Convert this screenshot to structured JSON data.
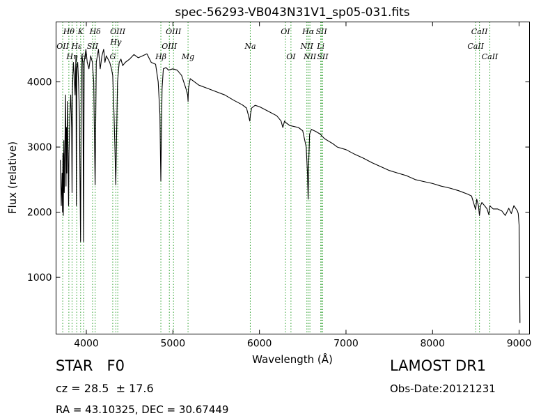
{
  "chart_data": {
    "type": "line",
    "title": "spec-56293-VB043N31V1_sp05-031.fits",
    "xlabel": "Wavelength (Å)",
    "ylabel": "Flux (relative)",
    "xlim": [
      3650,
      9120
    ],
    "ylim": [
      130,
      4920
    ],
    "xticks": [
      4000,
      5000,
      6000,
      7000,
      8000,
      9000
    ],
    "yticks": [
      1000,
      2000,
      3000,
      4000
    ],
    "grid": false,
    "legend": "none",
    "line_color": "#000000",
    "marker_color": "#2ca02c",
    "series": [
      {
        "x": [
          3700,
          3710,
          3720,
          3725,
          3730,
          3734,
          3740,
          3745,
          3750,
          3760,
          3765,
          3770,
          3775,
          3780,
          3790,
          3795,
          3800,
          3810,
          3820,
          3830,
          3835,
          3840,
          3850,
          3860,
          3870,
          3880,
          3885,
          3890,
          3900,
          3910,
          3920,
          3933,
          3940,
          3950,
          3960,
          3968,
          3975,
          3985,
          3995,
          4010,
          4030,
          4050,
          4070,
          4085,
          4101,
          4115,
          4140,
          4160,
          4180,
          4200,
          4215,
          4230,
          4250,
          4270,
          4290,
          4305,
          4320,
          4330,
          4340,
          4350,
          4360,
          4380,
          4400,
          4420,
          4450,
          4500,
          4550,
          4600,
          4650,
          4700,
          4750,
          4800,
          4830,
          4850,
          4855,
          4861,
          4867,
          4875,
          4890,
          4920,
          4950,
          5000,
          5050,
          5100,
          5150,
          5170,
          5175,
          5180,
          5200,
          5300,
          5400,
          5500,
          5600,
          5700,
          5800,
          5850,
          5870,
          5889,
          5896,
          5910,
          5950,
          6000,
          6100,
          6200,
          6250,
          6270,
          6290,
          6300,
          6350,
          6450,
          6500,
          6540,
          6555,
          6563,
          6570,
          6580,
          6600,
          6650,
          6700,
          6750,
          6800,
          6850,
          6900,
          7000,
          7100,
          7200,
          7300,
          7400,
          7500,
          7600,
          7700,
          7800,
          7900,
          8000,
          8100,
          8200,
          8300,
          8400,
          8450,
          8480,
          8490,
          8498,
          8510,
          8530,
          8542,
          8555,
          8570,
          8600,
          8630,
          8650,
          8662,
          8675,
          8700,
          8750,
          8800,
          8840,
          8880,
          8910,
          8940,
          8960,
          8980,
          8990,
          9000,
          9005,
          9010
        ],
        "y": [
          2800,
          2100,
          2600,
          2000,
          2900,
          1950,
          3100,
          2300,
          2700,
          3800,
          2400,
          3300,
          2600,
          3700,
          2700,
          2100,
          2900,
          3500,
          3800,
          3300,
          2300,
          3900,
          4300,
          4100,
          3800,
          4400,
          2100,
          4200,
          4300,
          4000,
          3500,
          1550,
          3700,
          4400,
          4300,
          1550,
          4300,
          4400,
          4500,
          4300,
          4200,
          4400,
          4300,
          4000,
          2420,
          4300,
          4500,
          4200,
          4400,
          4500,
          4300,
          4400,
          4350,
          4300,
          4200,
          4100,
          3500,
          3000,
          2420,
          3200,
          4000,
          4300,
          4350,
          4250,
          4300,
          4350,
          4420,
          4370,
          4400,
          4430,
          4300,
          4270,
          4000,
          3500,
          3000,
          2480,
          3200,
          3900,
          4200,
          4220,
          4180,
          4200,
          4180,
          4100,
          3900,
          3800,
          3700,
          3900,
          4050,
          3950,
          3900,
          3850,
          3800,
          3720,
          3650,
          3600,
          3500,
          3400,
          3500,
          3600,
          3640,
          3620,
          3550,
          3480,
          3400,
          3300,
          3400,
          3380,
          3330,
          3300,
          3250,
          3000,
          2600,
          2200,
          2800,
          3200,
          3270,
          3240,
          3200,
          3130,
          3090,
          3050,
          3000,
          2960,
          2890,
          2830,
          2760,
          2700,
          2640,
          2600,
          2560,
          2500,
          2470,
          2440,
          2400,
          2370,
          2330,
          2280,
          2250,
          2120,
          2070,
          2040,
          2200,
          2100,
          1950,
          2100,
          2150,
          2100,
          2050,
          1960,
          2100,
          2080,
          2050,
          2050,
          2020,
          1950,
          2060,
          1980,
          2100,
          2060,
          2020,
          1980,
          1800,
          1200,
          300
        ]
      }
    ],
    "line_markers": [
      {
        "label": "OII",
        "x": 3727,
        "row": 2
      },
      {
        "label": "Hθ",
        "x": 3798,
        "row": 0
      },
      {
        "label": "Hη",
        "x": 3835,
        "row": 3
      },
      {
        "label": "Hε",
        "x": 3889,
        "row": 2
      },
      {
        "label": "K",
        "x": 3934,
        "row": 0
      },
      {
        "label": "H",
        "x": 3969,
        "row": 3
      },
      {
        "label": "SII",
        "x": 4072,
        "row": 2
      },
      {
        "label": "Hδ",
        "x": 4102,
        "row": 0
      },
      {
        "label": "G",
        "x": 4305,
        "row": 3
      },
      {
        "label": "Hγ",
        "x": 4341,
        "row": 1
      },
      {
        "label": "OIII",
        "x": 4363,
        "row": 0
      },
      {
        "label": "Hβ",
        "x": 4861,
        "row": 3
      },
      {
        "label": "OIII",
        "x": 4959,
        "row": 2
      },
      {
        "label": "OIII",
        "x": 5007,
        "row": 0
      },
      {
        "label": "Mg",
        "x": 5175,
        "row": 3
      },
      {
        "label": "Na",
        "x": 5894,
        "row": 2
      },
      {
        "label": "OI",
        "x": 6300,
        "row": 0
      },
      {
        "label": "OI",
        "x": 6364,
        "row": 3
      },
      {
        "label": "NII",
        "x": 6548,
        "row": 2
      },
      {
        "label": "Hα",
        "x": 6563,
        "row": 0
      },
      {
        "label": "NII",
        "x": 6583,
        "row": 3
      },
      {
        "label": "Li",
        "x": 6708,
        "row": 2
      },
      {
        "label": "SII",
        "x": 6716,
        "row": 0
      },
      {
        "label": "SII",
        "x": 6731,
        "row": 3
      },
      {
        "label": "CaII",
        "x": 8498,
        "row": 2
      },
      {
        "label": "CaII",
        "x": 8542,
        "row": 0
      },
      {
        "label": "CaII",
        "x": 8662,
        "row": 3
      }
    ]
  },
  "info": {
    "class_text": "STAR   F0",
    "cz_text": "cz = 28.5  ± 17.6",
    "coords_text": "RA = 43.10325, DEC = 30.67449",
    "survey_text": "LAMOST DR1",
    "obs_date_text": "Obs-Date:20121231"
  }
}
